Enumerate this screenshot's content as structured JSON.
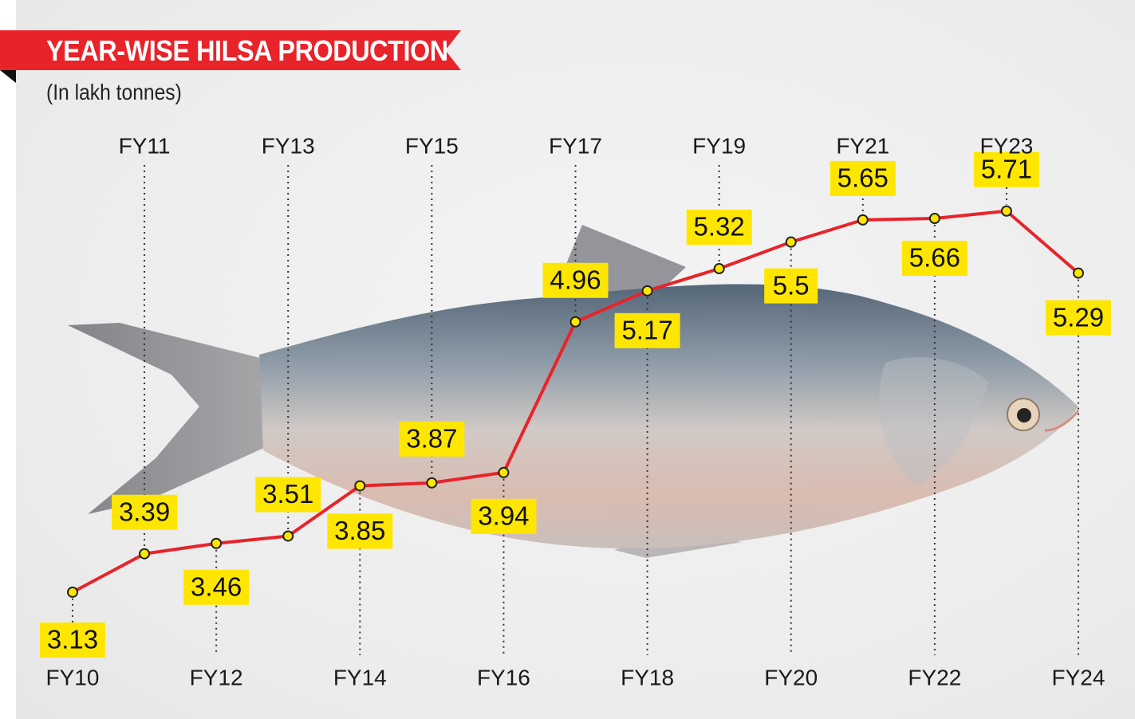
{
  "title": "YEAR-WISE HILSA PRODUCTION",
  "subtitle": "(In lakh tonnes)",
  "colors": {
    "accent": "#e8232a",
    "label_bg": "#ffe600",
    "point_fill": "#ffe600",
    "line": "#e8232a"
  },
  "chart_data": {
    "type": "line",
    "title": "YEAR-WISE HILSA PRODUCTION",
    "ylabel": "(In lakh tonnes)",
    "xlabel": "",
    "categories": [
      "FY10",
      "FY11",
      "FY12",
      "FY13",
      "FY14",
      "FY15",
      "FY16",
      "FY17",
      "FY18",
      "FY19",
      "FY20",
      "FY21",
      "FY22",
      "FY23",
      "FY24"
    ],
    "values": [
      3.13,
      3.39,
      3.46,
      3.51,
      3.85,
      3.87,
      3.94,
      4.96,
      5.17,
      5.32,
      5.5,
      5.65,
      5.66,
      5.71,
      5.29
    ],
    "axis_label_positions": [
      "bottom",
      "top",
      "bottom",
      "top",
      "bottom",
      "top",
      "bottom",
      "top",
      "bottom",
      "top",
      "bottom",
      "top",
      "bottom",
      "top",
      "bottom"
    ],
    "grid": false,
    "legend": "none"
  }
}
